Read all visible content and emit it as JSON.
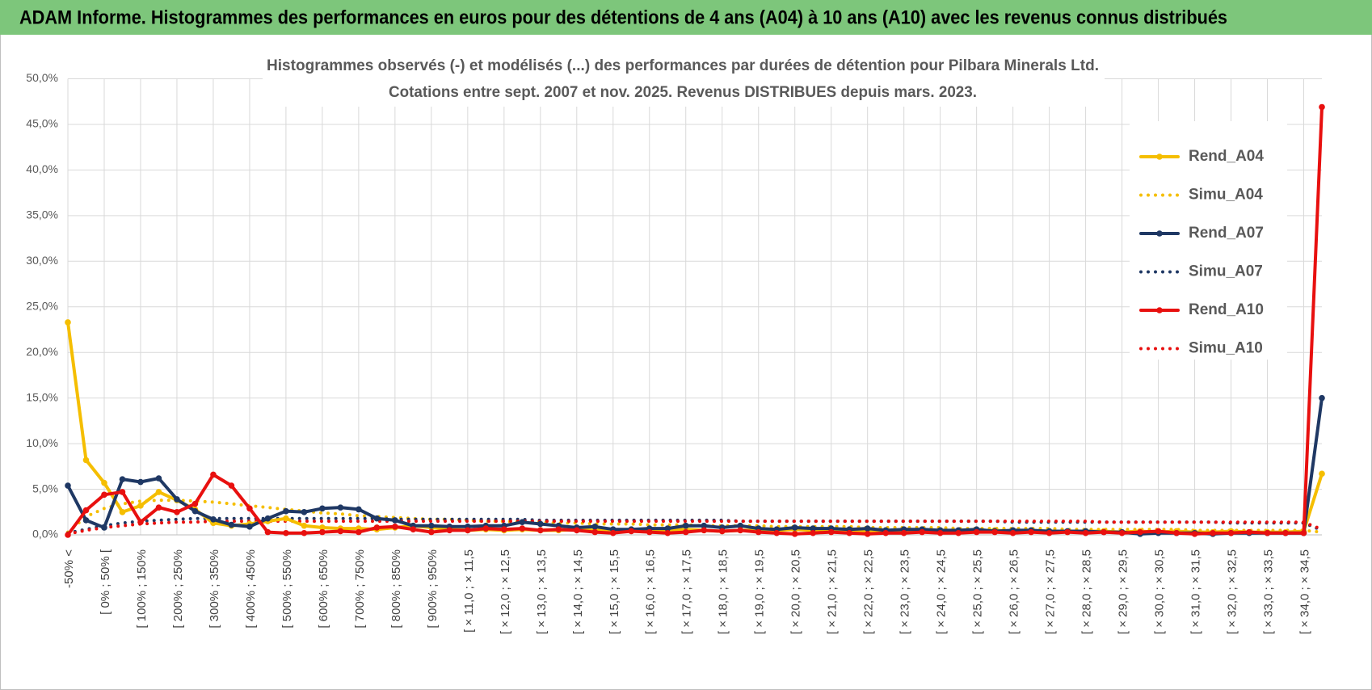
{
  "header": {
    "title": "ADAM Informe. Histogrammes des performances en euros pour des détentions de 4 ans (A04) à 10 ans (A10) avec les revenus connus distribués"
  },
  "chart_data": {
    "type": "line",
    "title": "Histogrammes observés (-) et modélisés (...) des performances par durées de détention pour Pilbara Minerals Ltd.",
    "subtitle": "Cotations entre sept. 2007 et nov. 2025. Revenus DISTRIBUES depuis mars. 2023.",
    "categories": [
      "-50% <",
      null,
      "[ 0% ; 50% [",
      null,
      "[ 100% ; 150%",
      null,
      "[ 200% ; 250%",
      null,
      "[ 300% ; 350%",
      null,
      "[ 400% ; 450%",
      null,
      "[ 500% ; 550%",
      null,
      "[ 600% ; 650%",
      null,
      "[ 700% ; 750%",
      null,
      "[ 800% ; 850%",
      null,
      "[ 900% ; 950%",
      null,
      "[ × 11,0 ; × 11,5",
      null,
      "[ × 12,0 ; × 12,5",
      null,
      "[ × 13,0 ; × 13,5",
      null,
      "[ × 14,0 ; × 14,5",
      null,
      "[ × 15,0 ; × 15,5",
      null,
      "[ × 16,0 ; × 16,5",
      null,
      "[ × 17,0 ; × 17,5",
      null,
      "[ × 18,0 ; × 18,5",
      null,
      "[ × 19,0 ; × 19,5",
      null,
      "[ × 20,0 ; × 20,5",
      null,
      "[ × 21,0 ; × 21,5",
      null,
      "[ × 22,0 ; × 22,5",
      null,
      "[ × 23,0 ; × 23,5",
      null,
      "[ × 24,0 ; × 24,5",
      null,
      "[ × 25,0 ; × 25,5",
      null,
      "[ × 26,0 ; × 26,5",
      null,
      "[ × 27,0 ; × 27,5",
      null,
      "[ × 28,0 ; × 28,5",
      null,
      "[ × 29,0 ; × 29,5",
      null,
      "[ × 30,0 ; × 30,5",
      null,
      "[ × 31,0 ; × 31,5",
      null,
      "[ × 32,0 ; × 32,5",
      null,
      "[ × 33,0 ; × 33,5",
      null,
      "[ × 34,0 ; × 34,5",
      null
    ],
    "series": [
      {
        "name": "Rend_A04",
        "color": "#f5be00",
        "style": "solid",
        "values": [
          23.3,
          8.2,
          5.7,
          2.5,
          3.2,
          4.7,
          3.8,
          2.8,
          1.3,
          1.0,
          1.2,
          1.5,
          1.8,
          1.0,
          0.8,
          0.7,
          0.7,
          0.6,
          0.8,
          1.0,
          0.8,
          0.6,
          0.5,
          0.6,
          0.5,
          0.6,
          0.5,
          0.5,
          0.6,
          0.5,
          0.5,
          0.6,
          0.5,
          0.5,
          0.6,
          0.5,
          0.4,
          0.5,
          0.5,
          0.5,
          0.6,
          0.5,
          0.4,
          0.5,
          0.4,
          0.5,
          0.4,
          0.4,
          0.5,
          0.4,
          0.4,
          0.5,
          0.4,
          0.4,
          0.4,
          0.3,
          0.4,
          0.4,
          0.3,
          0.4,
          0.3,
          0.4,
          0.3,
          0.3,
          0.4,
          0.3,
          0.3,
          0.3,
          0.4,
          6.7
        ]
      },
      {
        "name": "Simu_A04",
        "color": "#f5be00",
        "style": "dotted",
        "values": [
          0.3,
          2.0,
          2.9,
          3.4,
          3.7,
          3.8,
          3.8,
          3.7,
          3.6,
          3.4,
          3.2,
          3.0,
          2.8,
          2.6,
          2.4,
          2.3,
          2.1,
          2.0,
          1.9,
          1.8,
          1.7,
          1.7,
          1.6,
          1.5,
          1.5,
          1.4,
          1.4,
          1.3,
          1.3,
          1.2,
          1.2,
          1.2,
          1.1,
          1.1,
          1.1,
          1.0,
          1.0,
          1.0,
          1.0,
          0.9,
          0.9,
          0.9,
          0.9,
          0.9,
          0.8,
          0.8,
          0.8,
          0.8,
          0.8,
          0.7,
          0.7,
          0.7,
          0.7,
          0.7,
          0.7,
          0.6,
          0.6,
          0.6,
          0.6,
          0.6,
          0.6,
          0.6,
          0.5,
          0.5,
          0.5,
          0.5,
          0.5,
          0.5,
          0.5,
          0.3
        ]
      },
      {
        "name": "Rend_A07",
        "color": "#1f3864",
        "style": "solid",
        "values": [
          5.4,
          1.6,
          0.8,
          6.1,
          5.8,
          6.2,
          3.9,
          2.6,
          1.7,
          1.1,
          0.9,
          1.8,
          2.6,
          2.5,
          2.9,
          3.0,
          2.8,
          1.8,
          1.6,
          1.0,
          1.0,
          0.9,
          0.9,
          1.0,
          1.0,
          1.4,
          1.2,
          1.0,
          0.8,
          0.9,
          0.6,
          0.6,
          0.7,
          0.7,
          1.0,
          1.0,
          0.8,
          1.0,
          0.7,
          0.6,
          0.8,
          0.7,
          0.7,
          0.6,
          0.7,
          0.5,
          0.6,
          0.6,
          0.5,
          0.5,
          0.6,
          0.4,
          0.5,
          0.5,
          0.4,
          0.4,
          0.4,
          0.3,
          0.3,
          0.1,
          0.2,
          0.2,
          0.2,
          0.1,
          0.2,
          0.2,
          0.2,
          0.2,
          0.2,
          15.0
        ]
      },
      {
        "name": "Simu_A07",
        "color": "#1f3864",
        "style": "dotted",
        "values": [
          0.2,
          0.6,
          1.0,
          1.3,
          1.5,
          1.6,
          1.7,
          1.8,
          1.8,
          1.8,
          1.8,
          1.8,
          1.8,
          1.8,
          1.8,
          1.8,
          1.8,
          1.8,
          1.7,
          1.7,
          1.7,
          1.7,
          1.7,
          1.7,
          1.7,
          1.7,
          1.6,
          1.6,
          1.6,
          1.6,
          1.6,
          1.6,
          1.6,
          1.6,
          1.6,
          1.6,
          1.6,
          1.5,
          1.5,
          1.5,
          1.5,
          1.5,
          1.5,
          1.5,
          1.5,
          1.5,
          1.5,
          1.5,
          1.5,
          1.5,
          1.5,
          1.5,
          1.4,
          1.4,
          1.4,
          1.4,
          1.4,
          1.4,
          1.4,
          1.4,
          1.4,
          1.4,
          1.4,
          1.4,
          1.3,
          1.3,
          1.3,
          1.3,
          1.3,
          0.5
        ]
      },
      {
        "name": "Rend_A10",
        "color": "#e8100f",
        "style": "solid",
        "values": [
          0.0,
          2.7,
          4.4,
          4.7,
          1.4,
          3.0,
          2.5,
          3.4,
          6.6,
          5.4,
          2.9,
          0.3,
          0.2,
          0.2,
          0.3,
          0.4,
          0.3,
          0.8,
          0.9,
          0.6,
          0.3,
          0.5,
          0.5,
          0.7,
          0.6,
          0.7,
          0.5,
          0.6,
          0.5,
          0.3,
          0.2,
          0.4,
          0.3,
          0.2,
          0.3,
          0.5,
          0.4,
          0.5,
          0.3,
          0.2,
          0.1,
          0.2,
          0.3,
          0.2,
          0.1,
          0.2,
          0.2,
          0.3,
          0.2,
          0.2,
          0.3,
          0.3,
          0.2,
          0.3,
          0.2,
          0.3,
          0.2,
          0.3,
          0.2,
          0.3,
          0.4,
          0.2,
          0.1,
          0.2,
          0.2,
          0.3,
          0.2,
          0.2,
          0.2,
          46.9
        ]
      },
      {
        "name": "Simu_A10",
        "color": "#e8100f",
        "style": "dotted",
        "values": [
          0.1,
          0.5,
          0.8,
          1.0,
          1.2,
          1.3,
          1.4,
          1.4,
          1.5,
          1.5,
          1.5,
          1.5,
          1.5,
          1.5,
          1.5,
          1.5,
          1.5,
          1.5,
          1.5,
          1.5,
          1.5,
          1.5,
          1.5,
          1.5,
          1.5,
          1.5,
          1.5,
          1.5,
          1.5,
          1.5,
          1.5,
          1.5,
          1.5,
          1.5,
          1.5,
          1.5,
          1.5,
          1.5,
          1.5,
          1.5,
          1.5,
          1.5,
          1.5,
          1.5,
          1.5,
          1.5,
          1.5,
          1.5,
          1.5,
          1.5,
          1.5,
          1.5,
          1.5,
          1.5,
          1.5,
          1.5,
          1.5,
          1.4,
          1.4,
          1.4,
          1.4,
          1.4,
          1.4,
          1.4,
          1.4,
          1.4,
          1.4,
          1.4,
          1.4,
          0.6
        ]
      }
    ],
    "ylim": [
      0,
      50
    ],
    "yticks": [
      {
        "value": 0,
        "label": "0,0%"
      },
      {
        "value": 5,
        "label": "5,0%"
      },
      {
        "value": 10,
        "label": "10,0%"
      },
      {
        "value": 15,
        "label": "15,0%"
      },
      {
        "value": 20,
        "label": "20,0%"
      },
      {
        "value": 25,
        "label": "25,0%"
      },
      {
        "value": 30,
        "label": "30,0%"
      },
      {
        "value": 35,
        "label": "35,0%"
      },
      {
        "value": 40,
        "label": "40,0%"
      },
      {
        "value": 45,
        "label": "45,0%"
      },
      {
        "value": 50,
        "label": "50,0%"
      }
    ],
    "grid": true,
    "legend": "right"
  }
}
